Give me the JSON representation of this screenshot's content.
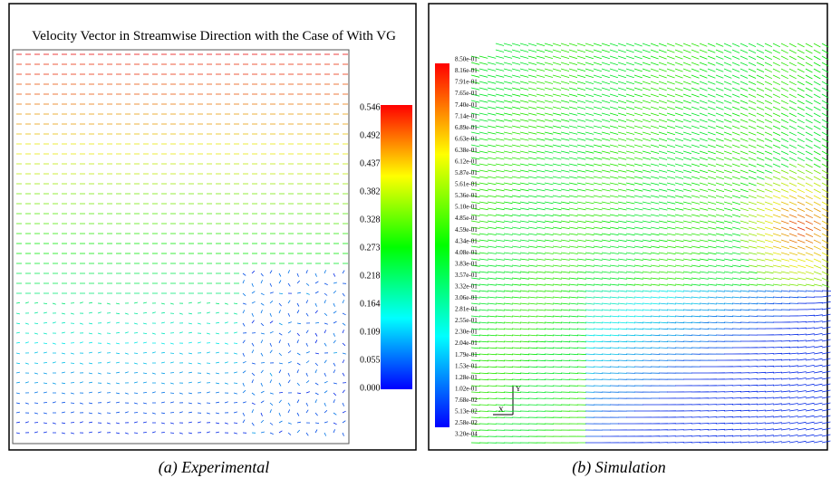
{
  "panels": [
    {
      "title": "Velocity Vector in Streamwise Direction with the Case of With VG",
      "colorbar_labels": [
        "0.546",
        "0.492",
        "0.437",
        "0.382",
        "0.328",
        "0.273",
        "0.218",
        "0.164",
        "0.109",
        "0.055",
        "0.000"
      ],
      "caption": "(a) Experimental"
    },
    {
      "colorbar_labels": [
        "8.50e-01",
        "8.16e-01",
        "7.91e-01",
        "7.65e-01",
        "7.40e-01",
        "7.14e-01",
        "6.89e-01",
        "6.63e-01",
        "6.38e-01",
        "6.12e-01",
        "5.87e-01",
        "5.61e-01",
        "5.36e-01",
        "5.10e-01",
        "4.85e-01",
        "4.59e-01",
        "4.34e-01",
        "4.08e-01",
        "3.83e-01",
        "3.57e-01",
        "3.32e-01",
        "3.06e-01",
        "2.81e-01",
        "2.55e-01",
        "2.30e-01",
        "2.04e-01",
        "1.79e-01",
        "1.53e-01",
        "1.28e-01",
        "1.02e-01",
        "7.68e-02",
        "5.13e-02",
        "2.58e-02",
        "3.20e-04"
      ],
      "axis_x": "X",
      "axis_y": "Y",
      "caption": "(b) Simulation"
    }
  ]
}
